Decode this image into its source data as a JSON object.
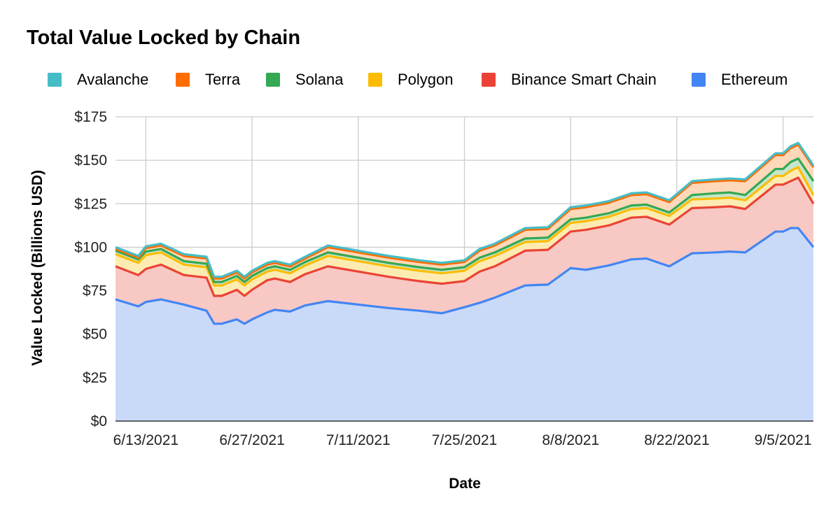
{
  "chart_data": {
    "type": "area",
    "stacked": true,
    "title": "Total Value Locked by Chain",
    "xlabel": "Date",
    "ylabel": "Value Locked (Billions USD)",
    "ylim": [
      0,
      175
    ],
    "y_ticks": [
      "$0",
      "$25",
      "$50",
      "$75",
      "$100",
      "$125",
      "$150",
      "$175"
    ],
    "x_ticks": [
      "6/13/2021",
      "6/27/2021",
      "7/11/2021",
      "7/25/2021",
      "8/8/2021",
      "8/22/2021",
      "9/5/2021"
    ],
    "x_range": [
      "6/9/2021",
      "9/9/2021"
    ],
    "grid": true,
    "legend_position": "top",
    "legend_order": [
      "Avalanche",
      "Terra",
      "Solana",
      "Polygon",
      "Binance Smart Chain",
      "Ethereum"
    ],
    "stack_order_bottom_up": [
      "Ethereum",
      "Binance Smart Chain",
      "Polygon",
      "Solana",
      "Terra",
      "Avalanche"
    ],
    "x": [
      "6/9/2021",
      "6/12/2021",
      "6/13/2021",
      "6/15/2021",
      "6/18/2021",
      "6/21/2021",
      "6/22/2021",
      "6/23/2021",
      "6/25/2021",
      "6/26/2021",
      "6/27/2021",
      "6/29/2021",
      "6/30/2021",
      "7/2/2021",
      "7/4/2021",
      "7/7/2021",
      "7/11/2021",
      "7/15/2021",
      "7/19/2021",
      "7/22/2021",
      "7/25/2021",
      "7/27/2021",
      "7/29/2021",
      "8/2/2021",
      "8/5/2021",
      "8/8/2021",
      "8/10/2021",
      "8/13/2021",
      "8/16/2021",
      "8/18/2021",
      "8/21/2021",
      "8/24/2021",
      "8/27/2021",
      "8/29/2021",
      "8/31/2021",
      "9/4/2021",
      "9/5/2021",
      "9/6/2021",
      "9/7/2021",
      "9/9/2021"
    ],
    "series": [
      {
        "name": "Ethereum",
        "color": "#4285f4",
        "fill": "#c9daf8",
        "values": [
          70,
          66,
          68.5,
          70,
          67,
          63.5,
          56,
          56,
          58.5,
          56,
          58.5,
          62.5,
          64,
          63,
          66.5,
          69,
          67,
          65,
          63.5,
          62,
          65.5,
          68,
          71,
          78,
          78.5,
          88,
          87,
          89.5,
          93,
          93.5,
          89,
          96.5,
          97,
          97.5,
          97,
          109,
          109,
          111,
          111,
          100
        ]
      },
      {
        "name": "Binance Smart Chain",
        "color": "#ea4335",
        "fill": "#f8c8c4",
        "values": [
          19,
          18,
          19,
          20,
          17,
          19,
          16,
          16,
          17,
          16,
          17,
          18.5,
          18,
          17,
          18,
          20,
          19,
          18,
          17,
          17,
          15,
          18,
          18,
          20,
          20,
          21,
          23,
          23,
          24,
          24,
          24,
          26,
          26,
          26,
          25,
          27,
          27,
          27,
          29,
          25
        ]
      },
      {
        "name": "Polygon",
        "color": "#fbbc04",
        "fill": "#fdebb2",
        "values": [
          7,
          7,
          8,
          7,
          6,
          6,
          6,
          6,
          6,
          6,
          6,
          5,
          5,
          5,
          5,
          6,
          6,
          6,
          6,
          6,
          6,
          6,
          6,
          5,
          5,
          5,
          5,
          5,
          5,
          5,
          5,
          5,
          5,
          5,
          5,
          5,
          5,
          6,
          6,
          5
        ]
      },
      {
        "name": "Solana",
        "color": "#34a853",
        "fill": "#c4e6cc",
        "values": [
          2,
          2,
          2,
          2,
          2,
          2,
          2,
          2,
          2,
          2,
          2,
          2,
          2,
          2,
          2,
          2,
          2,
          2,
          2,
          2,
          2,
          2,
          2,
          2,
          2,
          2,
          2,
          2,
          2,
          2,
          2,
          2.5,
          3,
          3,
          3,
          4,
          4,
          5,
          5,
          8
        ]
      },
      {
        "name": "Terra",
        "color": "#ff6d01",
        "fill": "#fed8b8",
        "values": [
          1,
          1,
          2,
          2,
          3,
          3,
          2,
          2,
          2,
          2,
          2,
          2,
          2,
          2,
          2,
          3,
          3,
          3,
          3,
          3,
          3,
          4,
          4,
          5,
          5,
          6,
          6,
          6,
          6,
          6,
          6,
          7,
          7,
          7,
          8,
          8,
          8,
          8,
          8,
          8
        ]
      },
      {
        "name": "Avalanche",
        "color": "#46bdc6",
        "fill": "#c8ecef",
        "values": [
          1,
          1,
          1,
          1,
          1,
          1,
          1,
          1,
          1,
          1,
          1,
          1,
          1,
          1,
          1,
          1,
          1,
          1,
          1,
          1,
          1,
          1,
          1,
          1,
          1,
          1,
          1,
          1,
          1,
          1,
          1,
          1,
          1,
          1,
          1,
          1,
          1,
          1,
          1,
          1
        ]
      }
    ]
  }
}
